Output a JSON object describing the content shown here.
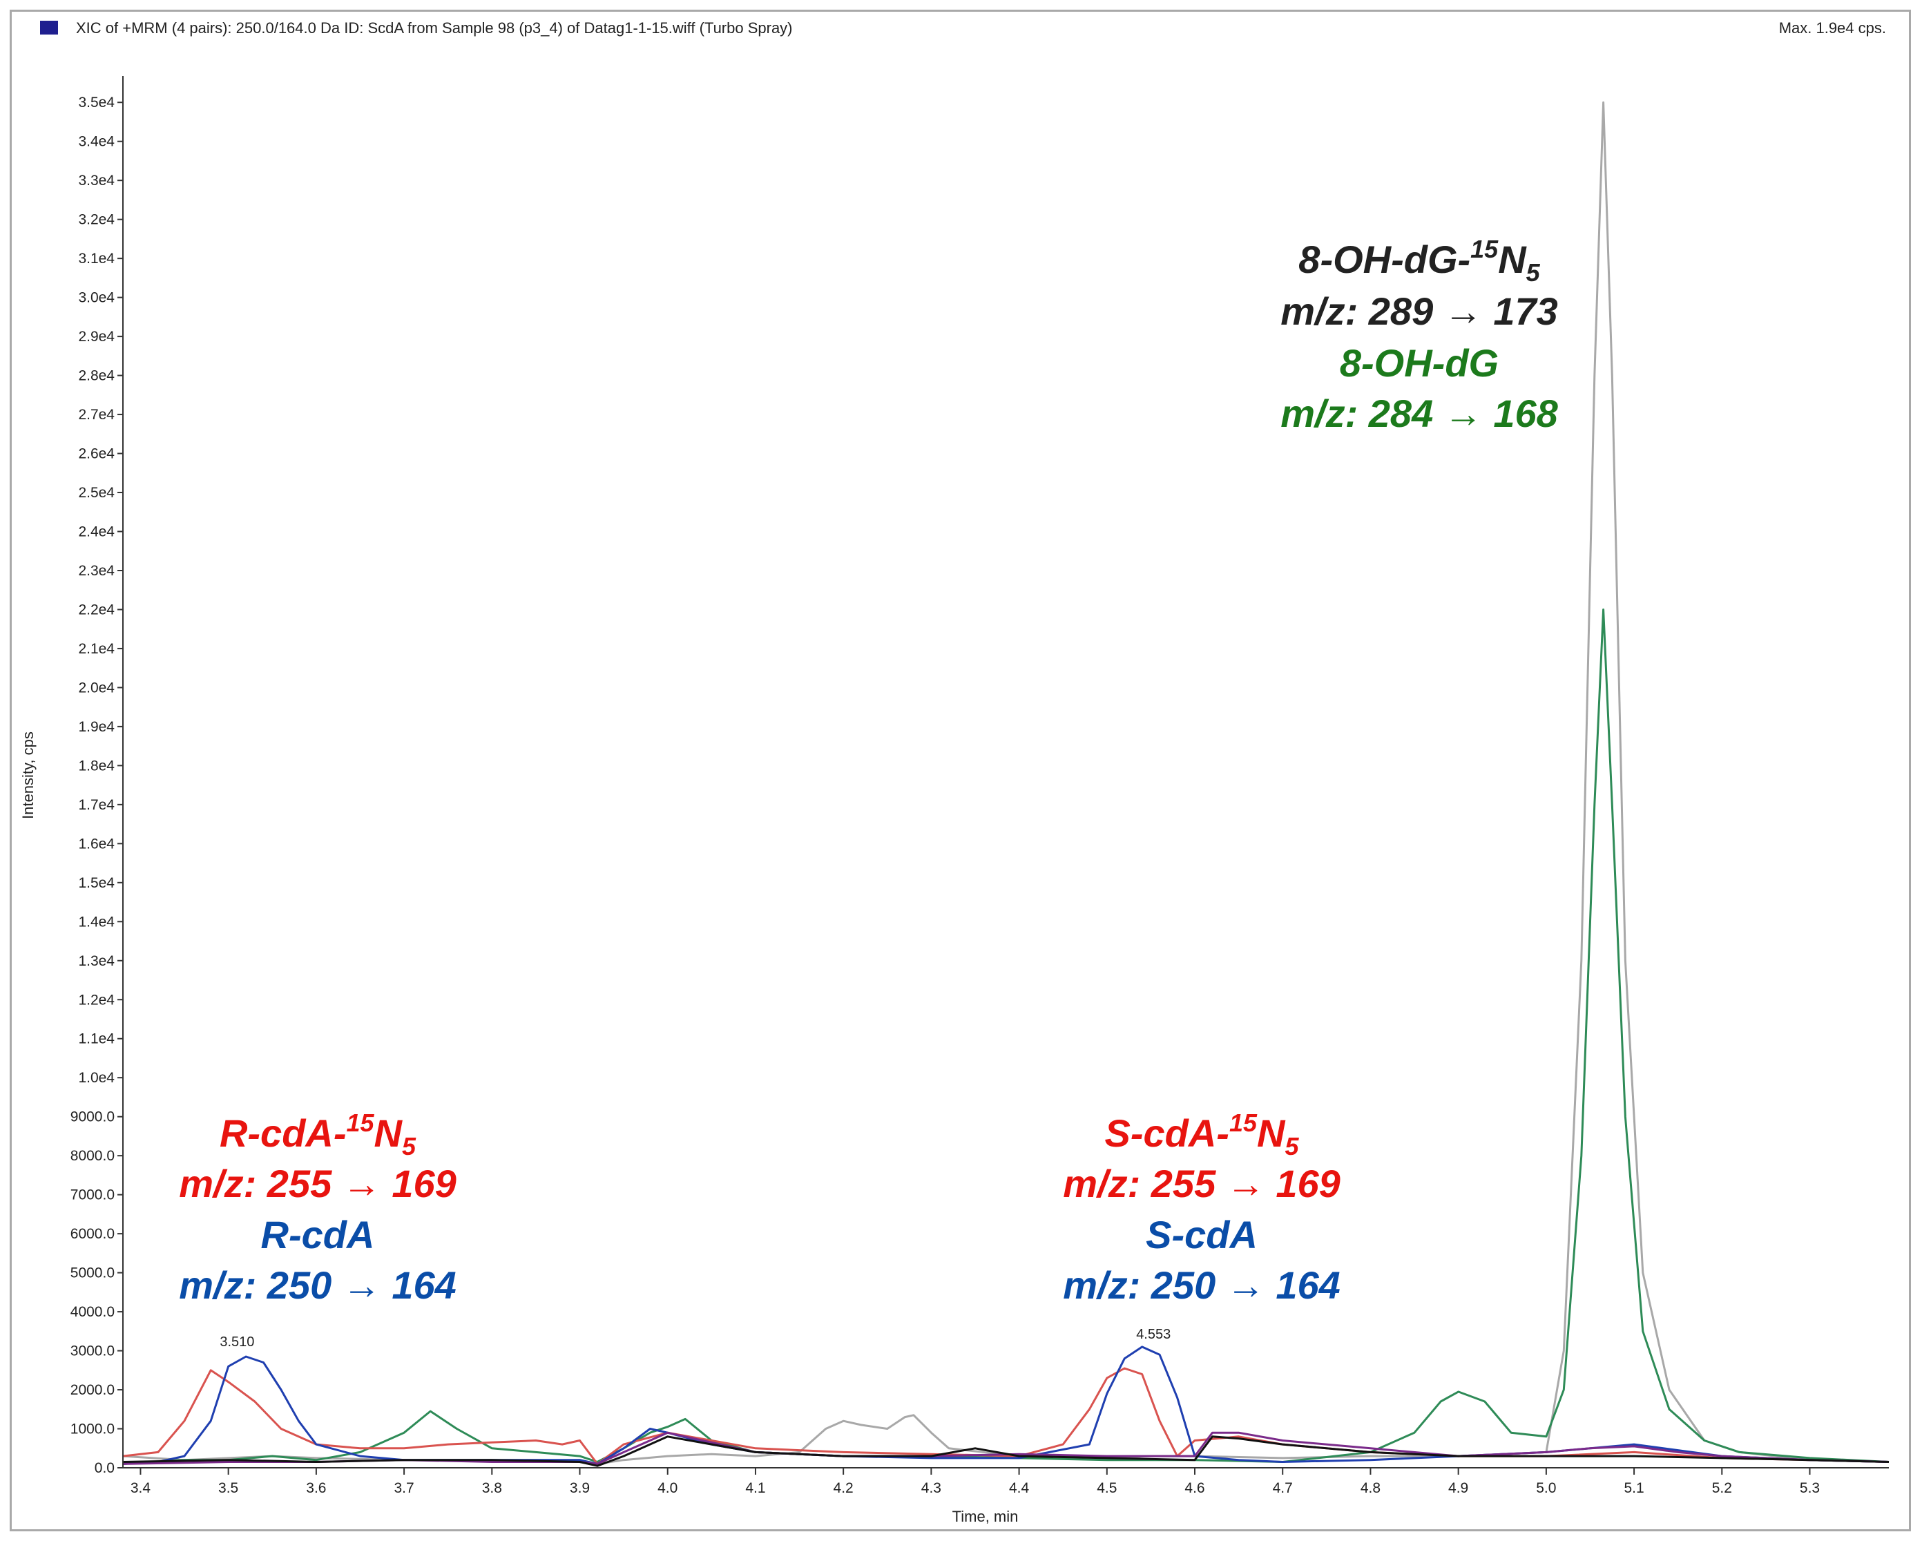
{
  "header": {
    "title": "XIC of +MRM (4 pairs): 250.0/164.0 Da ID: ScdA  from Sample 98 (p3_4) of Datag1-1-15.wiff (Turbo Spray)",
    "max_label": "Max. 1.9e4 cps."
  },
  "colors": {
    "grey": "#a8a8a8",
    "green": "#2e8b57",
    "red": "#d9534f",
    "blue": "#1f3fb0",
    "purple": "#7a2a8a",
    "black": "#111111",
    "ann_red": "#e8140f",
    "ann_blue": "#0a4da8",
    "ann_green": "#1c7a1c",
    "ann_black": "#222222"
  },
  "annotations": [
    {
      "id": "ohdg15n5",
      "base": "8-OH-dG-",
      "sup": "15",
      "main": "N",
      "sub": "5",
      "color": "ann_black"
    },
    {
      "id": "ohdg15n5_mz",
      "text": "m/z: 289 → 173",
      "color": "ann_black"
    },
    {
      "id": "ohdg",
      "text": "8-OH-dG",
      "color": "ann_green"
    },
    {
      "id": "ohdg_mz",
      "text": "m/z: 284 → 168",
      "color": "ann_green"
    },
    {
      "id": "rcda15n5",
      "base": "R-cdA-",
      "sup": "15",
      "main": "N",
      "sub": "5",
      "color": "ann_red"
    },
    {
      "id": "rcda15n5_mz",
      "text": "m/z: 255 → 169",
      "color": "ann_red"
    },
    {
      "id": "rcda",
      "text": "R-cdA",
      "color": "ann_blue"
    },
    {
      "id": "rcda_mz",
      "text": "m/z: 250 → 164",
      "color": "ann_blue"
    },
    {
      "id": "scda15n5",
      "base": "S-cdA-",
      "sup": "15",
      "main": "N",
      "sub": "5",
      "color": "ann_red"
    },
    {
      "id": "scda15n5_mz",
      "text": "m/z: 255 → 169",
      "color": "ann_red"
    },
    {
      "id": "scda",
      "text": "S-cdA",
      "color": "ann_blue"
    },
    {
      "id": "scda_mz",
      "text": "m/z: 250 → 164",
      "color": "ann_blue"
    }
  ],
  "chart_data": {
    "type": "line",
    "title": "",
    "xlabel": "Time, min",
    "ylabel": "Intensity, cps",
    "xlim": [
      3.38,
      5.39
    ],
    "ylim": [
      0,
      35500
    ],
    "x_ticks": [
      3.4,
      3.5,
      3.6,
      3.7,
      3.8,
      3.9,
      4.0,
      4.1,
      4.2,
      4.3,
      4.4,
      4.5,
      4.6,
      4.7,
      4.8,
      4.9,
      5.0,
      5.1,
      5.2,
      5.3
    ],
    "x_tick_labels": [
      "3.4",
      "3.5",
      "3.6",
      "3.7",
      "3.8",
      "3.9",
      "4.0",
      "4.1",
      "4.2",
      "4.3",
      "4.4",
      "4.5",
      "4.6",
      "4.7",
      "4.8",
      "4.9",
      "5.0",
      "5.1",
      "5.2",
      "5.3"
    ],
    "y_ticks": [
      0,
      1000,
      2000,
      3000,
      4000,
      5000,
      6000,
      7000,
      8000,
      9000,
      10000,
      11000,
      12000,
      13000,
      14000,
      15000,
      16000,
      17000,
      18000,
      19000,
      20000,
      21000,
      22000,
      23000,
      24000,
      25000,
      26000,
      27000,
      28000,
      29000,
      30000,
      31000,
      32000,
      33000,
      34000,
      35000
    ],
    "y_tick_labels": [
      "0.0",
      "1000.0",
      "2000.0",
      "3000.0",
      "4000.0",
      "5000.0",
      "6000.0",
      "7000.0",
      "8000.0",
      "9000.0",
      "1.0e4",
      "1.1e4",
      "1.2e4",
      "1.3e4",
      "1.4e4",
      "1.5e4",
      "1.6e4",
      "1.7e4",
      "1.8e4",
      "1.9e4",
      "2.0e4",
      "2.1e4",
      "2.2e4",
      "2.3e4",
      "2.4e4",
      "2.5e4",
      "2.6e4",
      "2.7e4",
      "2.8e4",
      "2.9e4",
      "3.0e4",
      "3.1e4",
      "3.2e4",
      "3.3e4",
      "3.4e4",
      "3.5e4"
    ],
    "peak_labels": [
      {
        "x": 3.51,
        "y": 2900,
        "text": "3.510"
      },
      {
        "x": 4.553,
        "y": 3100,
        "text": "4.553"
      }
    ],
    "series": [
      {
        "color": "grey",
        "x": [
          3.38,
          3.45,
          3.5,
          3.55,
          3.6,
          3.7,
          3.8,
          3.9,
          3.92,
          3.95,
          4.0,
          4.05,
          4.1,
          4.15,
          4.18,
          4.2,
          4.22,
          4.25,
          4.27,
          4.28,
          4.3,
          4.32,
          4.4,
          4.5,
          4.55,
          4.6,
          4.7,
          4.8,
          4.9,
          4.95,
          5.0,
          5.02,
          5.04,
          5.055,
          5.065,
          5.075,
          5.09,
          5.11,
          5.14,
          5.18,
          5.22,
          5.3,
          5.39
        ],
        "y": [
          300,
          200,
          250,
          300,
          250,
          200,
          200,
          200,
          100,
          200,
          300,
          350,
          300,
          400,
          1000,
          1200,
          1100,
          1000,
          1300,
          1350,
          900,
          500,
          300,
          250,
          300,
          300,
          250,
          300,
          300,
          350,
          400,
          3000,
          13000,
          28000,
          35000,
          28000,
          13000,
          5000,
          2000,
          700,
          400,
          200,
          150
        ]
      },
      {
        "color": "green",
        "x": [
          3.38,
          3.45,
          3.5,
          3.55,
          3.6,
          3.65,
          3.7,
          3.73,
          3.76,
          3.8,
          3.85,
          3.9,
          3.92,
          3.95,
          3.98,
          4.0,
          4.02,
          4.05,
          4.1,
          4.2,
          4.3,
          4.4,
          4.5,
          4.6,
          4.7,
          4.8,
          4.85,
          4.88,
          4.9,
          4.93,
          4.96,
          5.0,
          5.02,
          5.04,
          5.055,
          5.065,
          5.075,
          5.09,
          5.11,
          5.14,
          5.18,
          5.22,
          5.3,
          5.39
        ],
        "y": [
          100,
          200,
          200,
          300,
          200,
          400,
          900,
          1450,
          1000,
          500,
          400,
          300,
          150,
          500,
          900,
          1050,
          1250,
          700,
          400,
          300,
          300,
          250,
          200,
          200,
          150,
          400,
          900,
          1700,
          1950,
          1700,
          900,
          800,
          2000,
          8000,
          17000,
          22000,
          17000,
          9000,
          3500,
          1500,
          700,
          400,
          250,
          150
        ]
      },
      {
        "color": "red",
        "x": [
          3.38,
          3.42,
          3.45,
          3.48,
          3.5,
          3.53,
          3.56,
          3.6,
          3.65,
          3.7,
          3.75,
          3.8,
          3.85,
          3.88,
          3.9,
          3.92,
          3.95,
          4.0,
          4.05,
          4.1,
          4.2,
          4.3,
          4.4,
          4.45,
          4.48,
          4.5,
          4.52,
          4.54,
          4.56,
          4.58,
          4.6,
          4.65,
          4.7,
          4.8,
          4.9,
          5.0,
          5.1,
          5.2,
          5.3,
          5.39
        ],
        "y": [
          300,
          400,
          1200,
          2500,
          2200,
          1700,
          1000,
          600,
          500,
          500,
          600,
          650,
          700,
          600,
          700,
          100,
          600,
          900,
          700,
          500,
          400,
          350,
          300,
          600,
          1500,
          2300,
          2550,
          2400,
          1200,
          300,
          700,
          800,
          600,
          400,
          300,
          300,
          400,
          250,
          200,
          150
        ]
      },
      {
        "color": "blue",
        "x": [
          3.38,
          3.42,
          3.45,
          3.48,
          3.5,
          3.52,
          3.54,
          3.56,
          3.58,
          3.6,
          3.65,
          3.7,
          3.8,
          3.9,
          3.92,
          3.95,
          3.98,
          4.0,
          4.05,
          4.1,
          4.2,
          4.3,
          4.4,
          4.48,
          4.5,
          4.52,
          4.54,
          4.56,
          4.58,
          4.6,
          4.65,
          4.7,
          4.8,
          4.9,
          5.0,
          5.1,
          5.2,
          5.3,
          5.39
        ],
        "y": [
          100,
          150,
          300,
          1200,
          2600,
          2850,
          2700,
          2000,
          1200,
          600,
          300,
          200,
          200,
          200,
          100,
          500,
          1000,
          900,
          600,
          400,
          300,
          250,
          250,
          600,
          1900,
          2800,
          3100,
          2900,
          1800,
          300,
          200,
          150,
          200,
          300,
          400,
          600,
          300,
          200,
          150
        ]
      },
      {
        "color": "purple",
        "x": [
          3.38,
          3.5,
          3.6,
          3.7,
          3.8,
          3.9,
          3.92,
          3.95,
          4.0,
          4.1,
          4.2,
          4.3,
          4.4,
          4.5,
          4.6,
          4.62,
          4.65,
          4.7,
          4.8,
          4.9,
          5.0,
          5.05,
          5.1,
          5.15,
          5.2,
          5.3,
          5.39
        ],
        "y": [
          100,
          150,
          150,
          200,
          150,
          150,
          100,
          400,
          900,
          400,
          300,
          300,
          350,
          300,
          300,
          900,
          900,
          700,
          500,
          300,
          400,
          500,
          550,
          400,
          300,
          200,
          150
        ]
      },
      {
        "color": "black",
        "x": [
          3.38,
          3.5,
          3.6,
          3.7,
          3.8,
          3.9,
          3.92,
          3.95,
          4.0,
          4.1,
          4.2,
          4.3,
          4.35,
          4.4,
          4.5,
          4.6,
          4.62,
          4.65,
          4.7,
          4.8,
          4.9,
          5.0,
          5.1,
          5.2,
          5.3,
          5.39
        ],
        "y": [
          150,
          200,
          150,
          200,
          200,
          150,
          50,
          300,
          800,
          400,
          300,
          300,
          500,
          300,
          250,
          200,
          800,
          750,
          600,
          400,
          300,
          300,
          300,
          250,
          200,
          150
        ]
      }
    ]
  }
}
